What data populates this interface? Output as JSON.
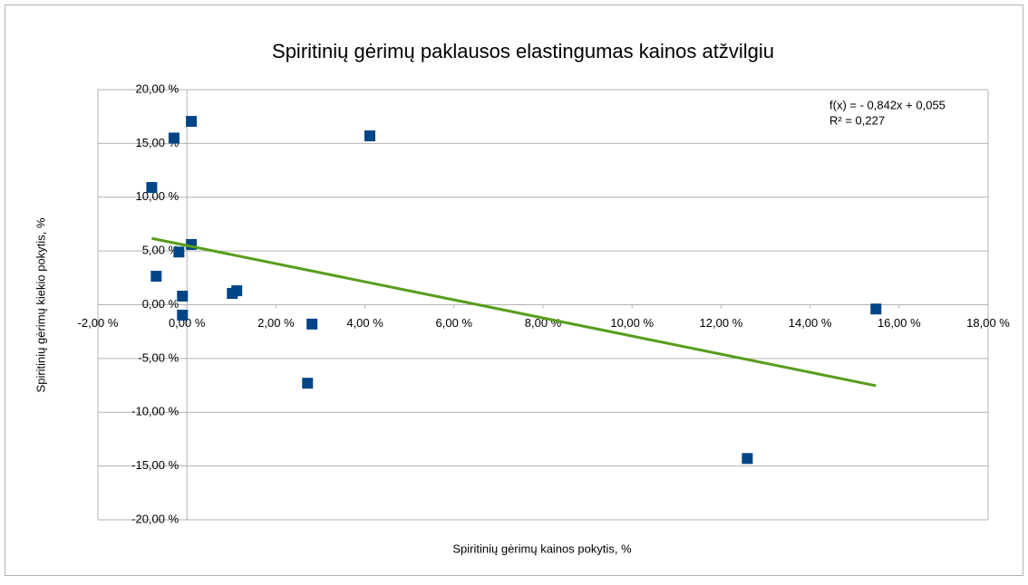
{
  "chart_data": {
    "type": "scatter",
    "title": "Spiritinių gėrimų paklausos elastingumas kainos atžvilgiu",
    "x_label": "Spiritinių gėrimų kainos pokytis, %",
    "y_label": "Spiritinių gėrimų kiekio pokytis, %",
    "annotations": [
      "f(x) =  - 0,842x + 0,055",
      "R² = 0,227"
    ],
    "series": [
      {
        "color": "#004586",
        "x": [
          -0.79,
          -0.29,
          0.1,
          4.11,
          0.1,
          -0.18,
          -0.69,
          -0.1,
          -0.1,
          1.02,
          1.12,
          2.81,
          2.71,
          12.59,
          15.48
        ],
        "values": [
          10.9,
          15.5,
          17.05,
          15.7,
          5.6,
          4.9,
          2.65,
          0.8,
          -0.97,
          1.05,
          1.3,
          -1.8,
          -7.3,
          -14.3,
          -0.4
        ]
      }
    ],
    "trendline": {
      "color": "#579d1c",
      "x": [
        -0.79,
        15.48
      ],
      "y": [
        6.17,
        -7.53
      ]
    },
    "xlim": [
      -2,
      18
    ],
    "ylim": [
      -20,
      20
    ],
    "xticks": [
      {
        "value": -2,
        "label": "-2,00 %"
      },
      {
        "value": 0,
        "label": "0,00 %"
      },
      {
        "value": 2,
        "label": "2,00 %"
      },
      {
        "value": 4,
        "label": "4,00 %"
      },
      {
        "value": 6,
        "label": "6,00 %"
      },
      {
        "value": 8,
        "label": "8,00 %"
      },
      {
        "value": 10,
        "label": "10,00 %"
      },
      {
        "value": 12,
        "label": "12,00 %"
      },
      {
        "value": 14,
        "label": "14,00 %"
      },
      {
        "value": 16,
        "label": "16,00 %"
      },
      {
        "value": 18,
        "label": "18,00 %"
      }
    ],
    "yticks": [
      {
        "value": 20,
        "label": "20,00 %"
      },
      {
        "value": 15,
        "label": "15,00 %"
      },
      {
        "value": 10,
        "label": "10,00 %"
      },
      {
        "value": 5,
        "label": "5,00 %"
      },
      {
        "value": 0,
        "label": "0,00 %"
      },
      {
        "value": -5,
        "label": "-5,00 %"
      },
      {
        "value": -10,
        "label": "-10,00 %"
      },
      {
        "value": -15,
        "label": "-15,00 %"
      },
      {
        "value": -20,
        "label": "-20,00 %"
      }
    ],
    "grid": true
  }
}
